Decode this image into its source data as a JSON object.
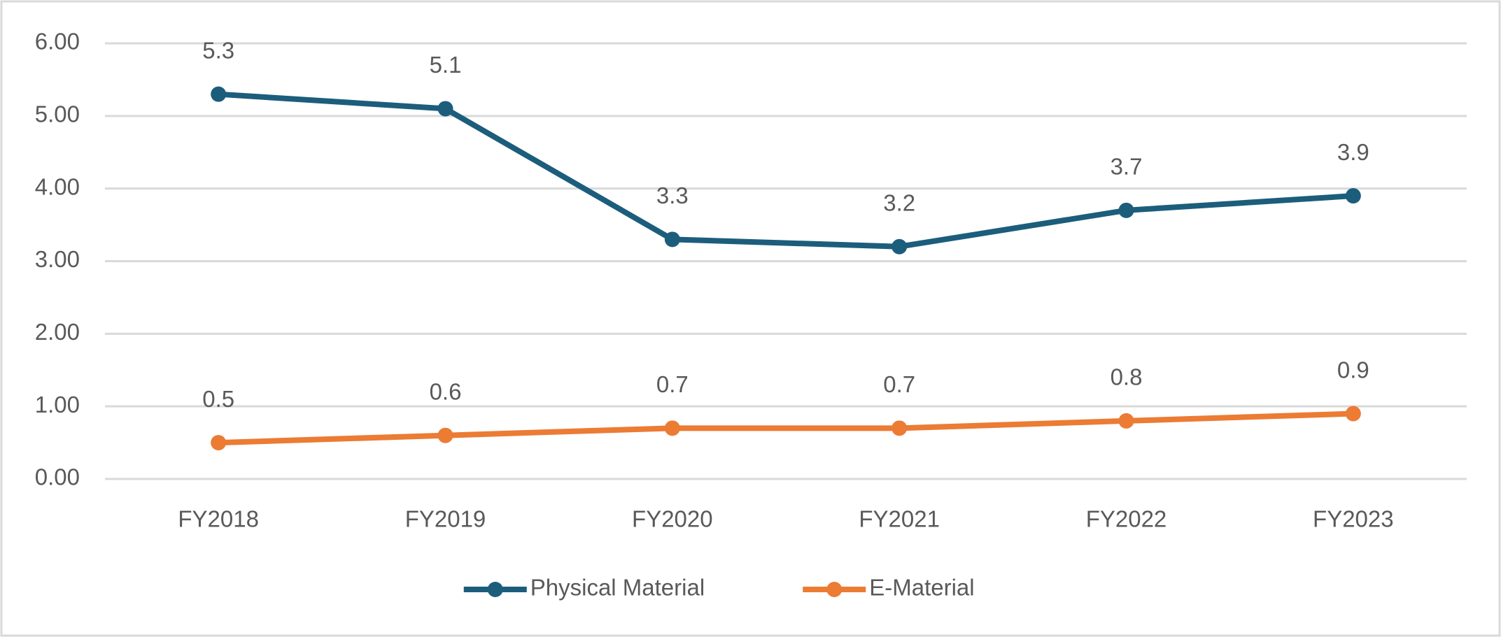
{
  "chart_data": {
    "type": "line",
    "categories": [
      "FY2018",
      "FY2019",
      "FY2020",
      "FY2021",
      "FY2022",
      "FY2023"
    ],
    "series": [
      {
        "name": "Physical Material",
        "color": "#1c5d7c",
        "values": [
          5.3,
          5.1,
          3.3,
          3.2,
          3.7,
          3.9
        ]
      },
      {
        "name": "E-Material",
        "color": "#ec7b34",
        "values": [
          0.5,
          0.6,
          0.7,
          0.7,
          0.8,
          0.9
        ]
      }
    ],
    "ylim": [
      0,
      6
    ],
    "yticks": [
      {
        "value": 0,
        "label": "0.00"
      },
      {
        "value": 1,
        "label": "1.00"
      },
      {
        "value": 2,
        "label": "2.00"
      },
      {
        "value": 3,
        "label": "3.00"
      },
      {
        "value": 4,
        "label": "4.00"
      },
      {
        "value": 5,
        "label": "5.00"
      },
      {
        "value": 6,
        "label": "6.00"
      }
    ],
    "grid": true,
    "legend": "bottom"
  }
}
